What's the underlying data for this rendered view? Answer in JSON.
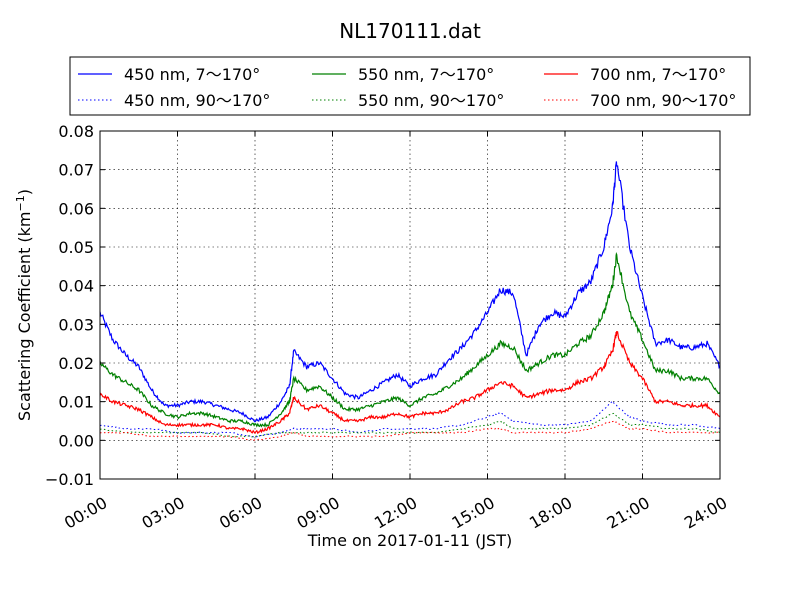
{
  "chart_data": {
    "type": "line",
    "title": "NL170111.dat",
    "xlabel": "Time on 2017-01-11 (JST)",
    "ylabel": "Scattering Coefficient (km",
    "ylabel_sup": "−1",
    "ylabel_end": ")",
    "xlim": [
      "00:00",
      "24:00"
    ],
    "ylim": [
      -0.01,
      0.08
    ],
    "x_ticks": [
      "00:00",
      "03:00",
      "06:00",
      "09:00",
      "12:00",
      "15:00",
      "18:00",
      "21:00",
      "24:00"
    ],
    "y_ticks": [
      "−0.01",
      "0.00",
      "0.01",
      "0.02",
      "0.03",
      "0.04",
      "0.05",
      "0.06",
      "0.07",
      "0.08"
    ],
    "grid": true,
    "legend_position": "top",
    "series": [
      {
        "name": "450 nm, 7～170°",
        "color": "#0000ff",
        "style": "solid",
        "x": [
          "00:00",
          "00:30",
          "01:00",
          "01:30",
          "02:00",
          "02:30",
          "03:00",
          "03:30",
          "04:00",
          "04:30",
          "05:00",
          "05:30",
          "06:00",
          "06:30",
          "07:00",
          "07:20",
          "07:30",
          "08:00",
          "08:30",
          "09:00",
          "09:30",
          "10:00",
          "10:30",
          "11:00",
          "11:30",
          "12:00",
          "12:30",
          "13:00",
          "13:30",
          "14:00",
          "14:30",
          "15:00",
          "15:30",
          "16:00",
          "16:30",
          "17:00",
          "17:30",
          "18:00",
          "18:30",
          "19:00",
          "19:30",
          "19:50",
          "20:00",
          "20:30",
          "21:00",
          "21:30",
          "22:00",
          "22:30",
          "23:00",
          "23:30",
          "24:00"
        ],
        "y": [
          0.033,
          0.026,
          0.022,
          0.019,
          0.013,
          0.009,
          0.009,
          0.01,
          0.01,
          0.009,
          0.008,
          0.007,
          0.005,
          0.006,
          0.01,
          0.014,
          0.023,
          0.019,
          0.02,
          0.016,
          0.012,
          0.011,
          0.013,
          0.015,
          0.017,
          0.014,
          0.016,
          0.017,
          0.021,
          0.024,
          0.028,
          0.033,
          0.039,
          0.038,
          0.022,
          0.03,
          0.033,
          0.032,
          0.038,
          0.041,
          0.05,
          0.06,
          0.072,
          0.05,
          0.037,
          0.025,
          0.026,
          0.024,
          0.024,
          0.025,
          0.019
        ]
      },
      {
        "name": "450 nm, 90～170°",
        "color": "#0000ff",
        "style": "dotted",
        "x": [
          "00:00",
          "01:00",
          "02:00",
          "03:00",
          "04:00",
          "05:00",
          "06:00",
          "07:00",
          "07:30",
          "08:00",
          "09:00",
          "10:00",
          "11:00",
          "12:00",
          "13:00",
          "14:00",
          "15:00",
          "15:30",
          "16:00",
          "17:00",
          "18:00",
          "19:00",
          "19:50",
          "20:30",
          "21:00",
          "22:00",
          "23:00",
          "24:00"
        ],
        "y": [
          0.004,
          0.003,
          0.003,
          0.002,
          0.002,
          0.002,
          0.001,
          0.002,
          0.003,
          0.003,
          0.003,
          0.002,
          0.003,
          0.003,
          0.003,
          0.004,
          0.006,
          0.007,
          0.005,
          0.004,
          0.004,
          0.005,
          0.01,
          0.006,
          0.005,
          0.004,
          0.004,
          0.003
        ]
      },
      {
        "name": "550 nm, 7～170°",
        "color": "#008000",
        "style": "solid",
        "x": [
          "00:00",
          "00:30",
          "01:00",
          "01:30",
          "02:00",
          "02:30",
          "03:00",
          "03:30",
          "04:00",
          "04:30",
          "05:00",
          "05:30",
          "06:00",
          "06:30",
          "07:00",
          "07:20",
          "07:30",
          "08:00",
          "08:30",
          "09:00",
          "09:30",
          "10:00",
          "10:30",
          "11:00",
          "11:30",
          "12:00",
          "12:30",
          "13:00",
          "13:30",
          "14:00",
          "14:30",
          "15:00",
          "15:30",
          "16:00",
          "16:30",
          "17:00",
          "17:30",
          "18:00",
          "18:30",
          "19:00",
          "19:30",
          "19:50",
          "20:00",
          "20:30",
          "21:00",
          "21:30",
          "22:00",
          "22:30",
          "23:00",
          "23:30",
          "24:00"
        ],
        "y": [
          0.02,
          0.017,
          0.015,
          0.013,
          0.009,
          0.007,
          0.006,
          0.007,
          0.007,
          0.006,
          0.005,
          0.005,
          0.004,
          0.004,
          0.007,
          0.01,
          0.016,
          0.013,
          0.014,
          0.011,
          0.008,
          0.008,
          0.009,
          0.01,
          0.011,
          0.009,
          0.011,
          0.012,
          0.014,
          0.016,
          0.019,
          0.022,
          0.025,
          0.024,
          0.018,
          0.02,
          0.022,
          0.022,
          0.025,
          0.027,
          0.033,
          0.04,
          0.048,
          0.033,
          0.026,
          0.018,
          0.018,
          0.016,
          0.016,
          0.016,
          0.012
        ]
      },
      {
        "name": "550 nm, 90～170°",
        "color": "#008000",
        "style": "dotted",
        "x": [
          "00:00",
          "01:00",
          "02:00",
          "03:00",
          "04:00",
          "05:00",
          "06:00",
          "07:00",
          "07:30",
          "08:00",
          "09:00",
          "10:00",
          "11:00",
          "12:00",
          "13:00",
          "14:00",
          "15:00",
          "15:30",
          "16:00",
          "17:00",
          "18:00",
          "19:00",
          "19:50",
          "20:30",
          "21:00",
          "22:00",
          "23:00",
          "24:00"
        ],
        "y": [
          0.003,
          0.002,
          0.002,
          0.002,
          0.002,
          0.001,
          0.001,
          0.002,
          0.002,
          0.002,
          0.002,
          0.002,
          0.002,
          0.002,
          0.002,
          0.003,
          0.004,
          0.005,
          0.003,
          0.003,
          0.003,
          0.004,
          0.007,
          0.004,
          0.004,
          0.003,
          0.003,
          0.002
        ]
      },
      {
        "name": "700 nm, 7～170°",
        "color": "#ff0000",
        "style": "solid",
        "x": [
          "00:00",
          "00:30",
          "01:00",
          "01:30",
          "02:00",
          "02:30",
          "03:00",
          "03:30",
          "04:00",
          "04:30",
          "05:00",
          "05:30",
          "06:00",
          "06:30",
          "07:00",
          "07:20",
          "07:30",
          "08:00",
          "08:30",
          "09:00",
          "09:30",
          "10:00",
          "10:30",
          "11:00",
          "11:30",
          "12:00",
          "12:30",
          "13:00",
          "13:30",
          "14:00",
          "14:30",
          "15:00",
          "15:30",
          "16:00",
          "16:30",
          "17:00",
          "17:30",
          "18:00",
          "18:30",
          "19:00",
          "19:30",
          "19:50",
          "20:00",
          "20:30",
          "21:00",
          "21:30",
          "22:00",
          "22:30",
          "23:00",
          "23:30",
          "24:00"
        ],
        "y": [
          0.012,
          0.01,
          0.009,
          0.008,
          0.006,
          0.004,
          0.004,
          0.004,
          0.004,
          0.004,
          0.003,
          0.003,
          0.002,
          0.003,
          0.005,
          0.007,
          0.011,
          0.008,
          0.009,
          0.007,
          0.005,
          0.005,
          0.006,
          0.006,
          0.007,
          0.006,
          0.007,
          0.007,
          0.008,
          0.01,
          0.011,
          0.013,
          0.015,
          0.014,
          0.011,
          0.012,
          0.013,
          0.013,
          0.015,
          0.016,
          0.019,
          0.023,
          0.028,
          0.02,
          0.016,
          0.01,
          0.01,
          0.009,
          0.009,
          0.009,
          0.006
        ]
      },
      {
        "name": "700 nm, 90～170°",
        "color": "#ff0000",
        "style": "dotted",
        "x": [
          "00:00",
          "01:00",
          "02:00",
          "03:00",
          "04:00",
          "05:00",
          "06:00",
          "07:00",
          "07:30",
          "08:00",
          "09:00",
          "10:00",
          "11:00",
          "12:00",
          "13:00",
          "14:00",
          "15:00",
          "15:30",
          "16:00",
          "17:00",
          "18:00",
          "19:00",
          "19:50",
          "20:30",
          "21:00",
          "22:00",
          "23:00",
          "24:00"
        ],
        "y": [
          0.002,
          0.002,
          0.001,
          0.001,
          0.001,
          0.001,
          0.0,
          0.001,
          0.002,
          0.001,
          0.001,
          0.001,
          0.001,
          0.002,
          0.002,
          0.002,
          0.003,
          0.003,
          0.002,
          0.002,
          0.002,
          0.003,
          0.005,
          0.003,
          0.003,
          0.002,
          0.002,
          0.002
        ]
      }
    ]
  }
}
